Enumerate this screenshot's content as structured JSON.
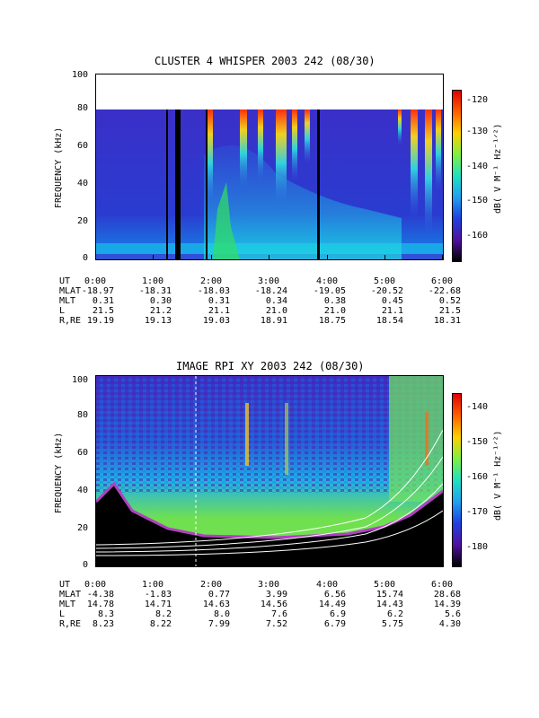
{
  "panels": [
    {
      "title": "CLUSTER 4 WHISPER 2003 242 (08/30)",
      "ylabel": "FREQUENCY (kHz)",
      "yticks": [
        "100",
        "80",
        "60",
        "40",
        "20",
        "0"
      ],
      "colorbar_label": "dB( V M⁻¹ Hz⁻¹ᐟ²)",
      "colorbar_ticks": [
        "-120",
        "-130",
        "-140",
        "-150",
        "-160"
      ],
      "ephemeris": {
        "labels": [
          "UT",
          "MLAT",
          "MLT",
          "L",
          "R,RE"
        ],
        "columns": [
          [
            "0:00",
            "-18.97",
            "0.31",
            "21.5",
            "19.19"
          ],
          [
            "1:00",
            "-18.31",
            "0.30",
            "21.2",
            "19.13"
          ],
          [
            "2:00",
            "-18.03",
            "0.31",
            "21.1",
            "19.03"
          ],
          [
            "3:00",
            "-18.24",
            "0.34",
            "21.0",
            "18.91"
          ],
          [
            "4:00",
            "-19.05",
            "0.38",
            "21.0",
            "18.75"
          ],
          [
            "5:00",
            "-20.52",
            "0.45",
            "21.1",
            "18.54"
          ],
          [
            "6:00",
            "-22.68",
            "0.52",
            "21.5",
            "18.31"
          ]
        ]
      }
    },
    {
      "title": "IMAGE RPI XY 2003 242 (08/30)",
      "ylabel": "FREQUENCY (kHz)",
      "yticks": [
        "100",
        "80",
        "60",
        "40",
        "20",
        "0"
      ],
      "colorbar_label": "dB( V M⁻¹ Hz⁻¹ᐟ²)",
      "colorbar_ticks": [
        "-140",
        "-150",
        "-160",
        "-170",
        "-180"
      ],
      "ephemeris": {
        "labels": [
          "UT",
          "MLAT",
          "MLT",
          "L",
          "R,RE"
        ],
        "columns": [
          [
            "0:00",
            "-4.38",
            "14.78",
            "8.3",
            "8.23"
          ],
          [
            "1:00",
            "-1.83",
            "14.71",
            "8.2",
            "8.22"
          ],
          [
            "2:00",
            "0.77",
            "14.63",
            "8.0",
            "7.99"
          ],
          [
            "3:00",
            "3.99",
            "14.56",
            "7.6",
            "7.52"
          ],
          [
            "4:00",
            "6.56",
            "14.49",
            "6.9",
            "6.79"
          ],
          [
            "5:00",
            "15.74",
            "14.43",
            "6.2",
            "5.75"
          ],
          [
            "6:00",
            "28.68",
            "14.39",
            "5.6",
            "4.30"
          ]
        ]
      }
    }
  ],
  "chart_data": [
    {
      "type": "heatmap",
      "title": "CLUSTER 4 WHISPER 2003 242 (08/30)",
      "x": [
        "0:00",
        "1:00",
        "2:00",
        "3:00",
        "4:00",
        "5:00",
        "6:00"
      ],
      "xlim_hours": [
        0,
        6
      ],
      "ylabel": "FREQUENCY (kHz)",
      "ylim": [
        0,
        100
      ],
      "data_ceiling_khz": 80,
      "colorbar_range": [
        -165,
        -118
      ],
      "data_gaps_hours": [
        1.2,
        1.33,
        1.38,
        1.9,
        3.82
      ]
    },
    {
      "type": "heatmap",
      "title": "IMAGE RPI XY 2003 242 (08/30)",
      "x": [
        "0:00",
        "1:00",
        "2:00",
        "3:00",
        "4:00",
        "5:00",
        "6:00"
      ],
      "xlim_hours": [
        0,
        6
      ],
      "ylabel": "FREQUENCY (kHz)",
      "ylim": [
        0,
        100
      ],
      "colorbar_range": [
        -185,
        -135
      ]
    }
  ]
}
